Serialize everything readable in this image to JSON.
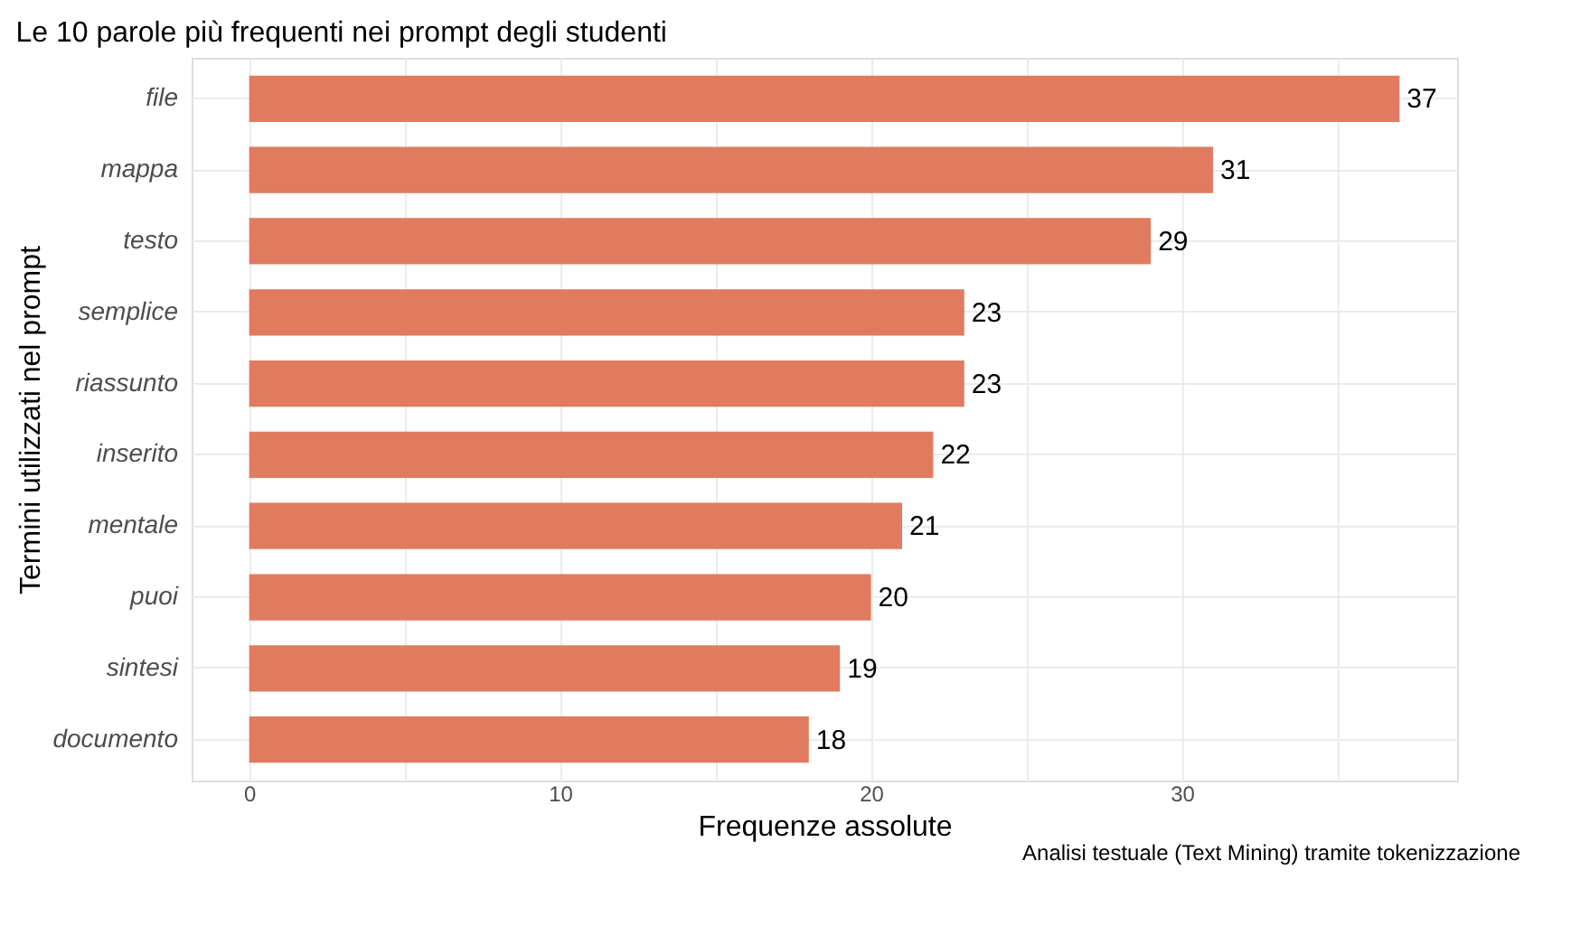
{
  "chart_data": {
    "type": "bar",
    "orientation": "horizontal",
    "title": "Le 10 parole più frequenti nei prompt degli studenti",
    "xlabel": "Frequenze assolute",
    "ylabel": "Termini utilizzati nel prompt",
    "categories": [
      "file",
      "mappa",
      "testo",
      "semplice",
      "riassunto",
      "inserito",
      "mentale",
      "puoi",
      "sintesi",
      "documento"
    ],
    "values": [
      37,
      31,
      29,
      23,
      23,
      22,
      21,
      20,
      19,
      18
    ],
    "color": "#e07b5f",
    "xlim": [
      -1.85,
      38.85
    ],
    "xticks": [
      0,
      {
        "value": 5,
        "label": null
      },
      10,
      {
        "value": 15,
        "label": null
      },
      20,
      {
        "value": 25,
        "label": null
      },
      30,
      {
        "value": 35,
        "label": null
      }
    ],
    "grid": true,
    "data_labels": true,
    "annotations": [
      "Analisi testuale (Text Mining) tramite tokenizzazione"
    ]
  }
}
